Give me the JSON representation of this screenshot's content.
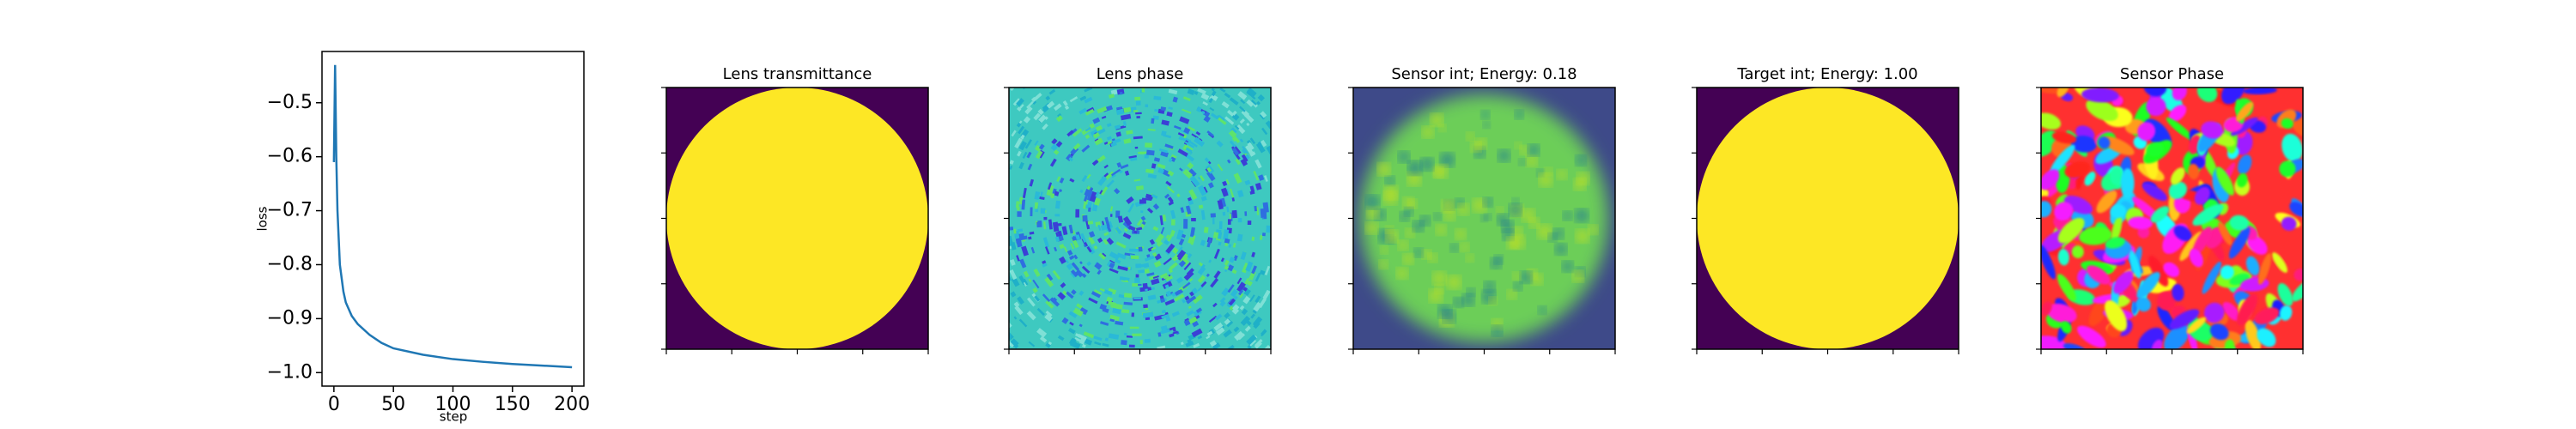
{
  "chart_data": {
    "type": "line",
    "x_label": "step",
    "y_label": "loss",
    "x": [
      0,
      1,
      2,
      3,
      5,
      8,
      10,
      15,
      20,
      30,
      40,
      50,
      75,
      100,
      125,
      150,
      175,
      200
    ],
    "values": [
      -0.61,
      -0.43,
      -0.6,
      -0.7,
      -0.8,
      -0.85,
      -0.87,
      -0.895,
      -0.91,
      -0.93,
      -0.945,
      -0.955,
      -0.967,
      -0.975,
      -0.98,
      -0.984,
      -0.987,
      -0.99
    ],
    "color": "#1f77b4",
    "xlim": [
      -10,
      210
    ],
    "ylim": [
      -1.025,
      -0.405
    ],
    "xticks": [
      0,
      50,
      100,
      150,
      200
    ],
    "yticks": [
      {
        "value": -0.5,
        "label": "−0.5"
      },
      {
        "value": -0.6,
        "label": "−0.6"
      },
      {
        "value": -0.7,
        "label": "−0.7"
      },
      {
        "value": -0.8,
        "label": "−0.8"
      },
      {
        "value": -0.9,
        "label": "−0.9"
      },
      {
        "value": -1.0,
        "label": "−1.0"
      }
    ]
  },
  "image_panels": [
    {
      "title": "Lens transmittance"
    },
    {
      "title": "Lens phase"
    },
    {
      "title": "Sensor int; Energy: 0.18"
    },
    {
      "title": "Target int; Energy: 1.00"
    },
    {
      "title": "Sensor Phase"
    }
  ]
}
